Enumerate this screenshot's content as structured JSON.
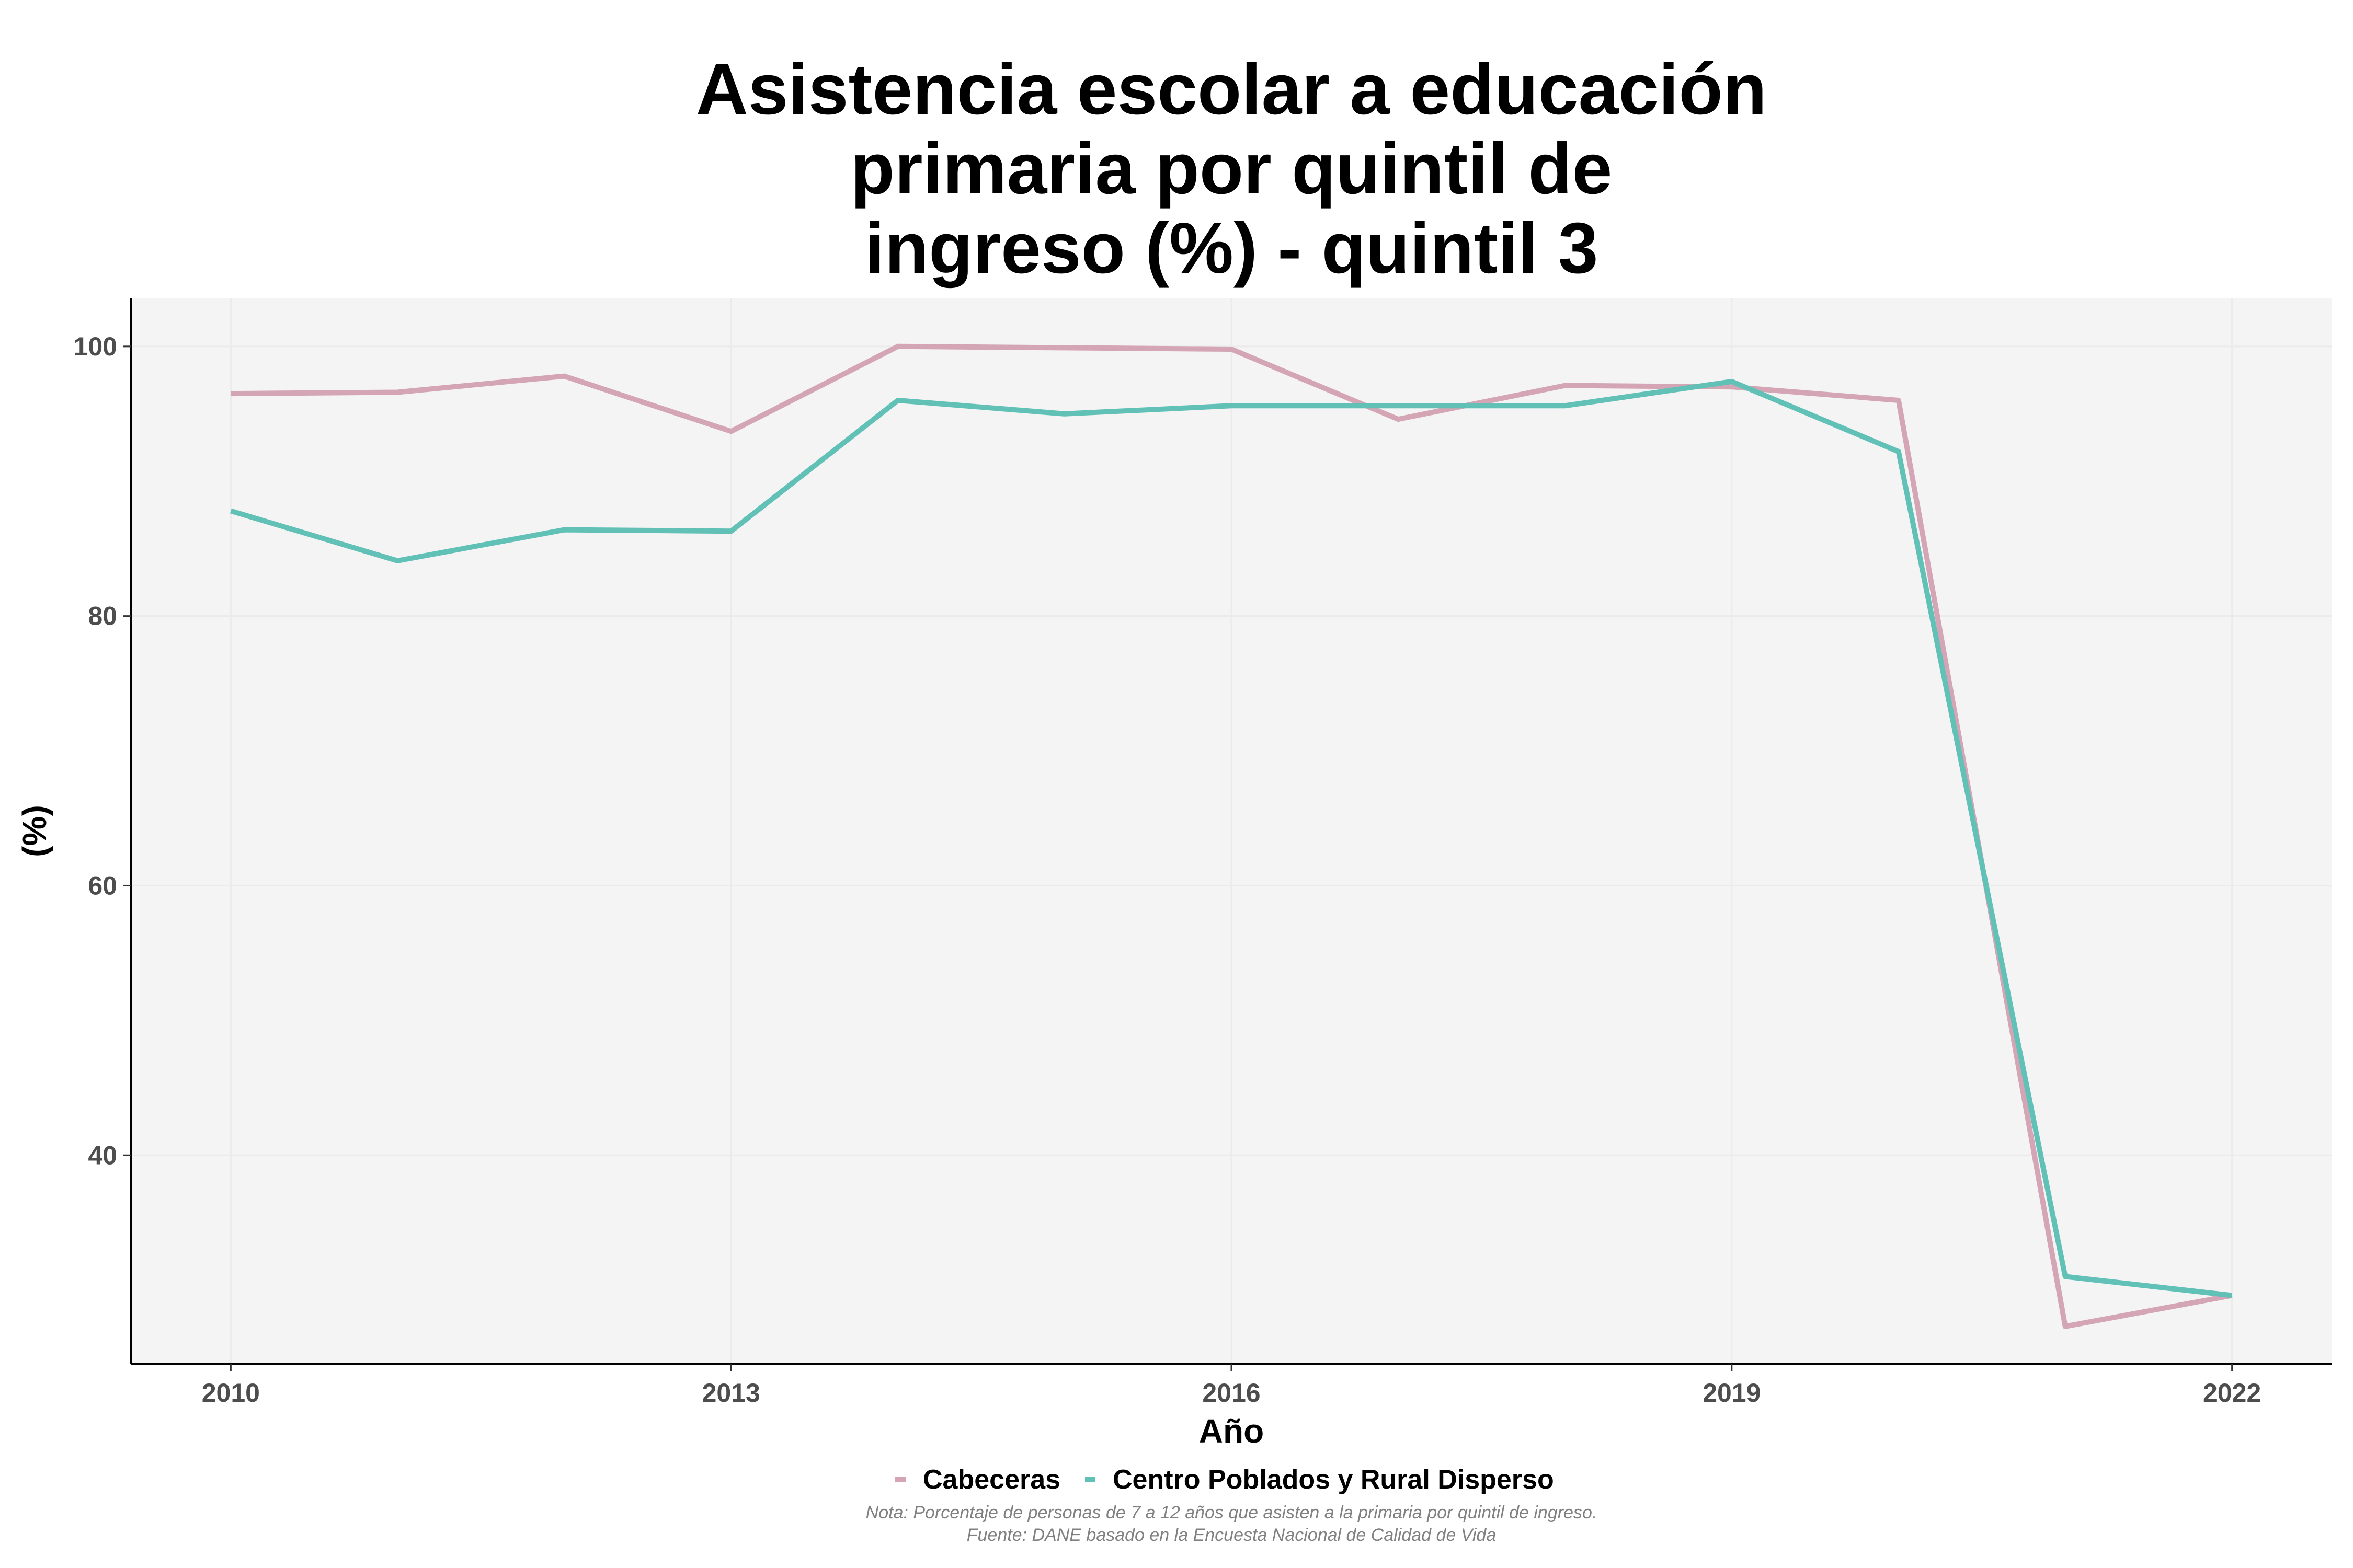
{
  "chart_data": {
    "type": "line",
    "title_lines": [
      "Asistencia escolar a educación",
      "primaria por quintil de",
      "ingreso (%) - quintil 3"
    ],
    "xlabel": "Año",
    "ylabel": "(%)",
    "x": [
      2010,
      2011,
      2012,
      2013,
      2014,
      2015,
      2016,
      2017,
      2018,
      2019,
      2020,
      2021,
      2022
    ],
    "x_ticks": [
      2010,
      2013,
      2016,
      2019,
      2022
    ],
    "y_ticks": [
      40,
      60,
      80,
      100
    ],
    "xlim": [
      2009.4,
      2022.6
    ],
    "ylim": [
      24.5,
      103.6
    ],
    "grid": true,
    "legend_position": "bottom",
    "series": [
      {
        "name": "Cabeceras",
        "color": "#d4a5b4",
        "values": [
          96.5,
          96.6,
          97.8,
          93.7,
          100.0,
          99.9,
          99.8,
          94.6,
          97.1,
          97.0,
          96.0,
          27.3,
          29.6
        ]
      },
      {
        "name": "Centro Poblados y Rural Disperso",
        "color": "#62c1b7",
        "values": [
          87.8,
          84.1,
          86.4,
          86.3,
          96.0,
          95.0,
          95.6,
          95.6,
          95.6,
          97.4,
          92.2,
          31.0,
          29.6
        ]
      }
    ],
    "caption_lines": [
      "Nota: Porcentaje de personas de 7 a 12 años que asisten a la primaria por quintil de ingreso.",
      "Fuente: DANE basado en la Encuesta Nacional de Calidad de Vida"
    ],
    "panel_background": "#f4f4f4",
    "grid_color": "#ebebeb"
  }
}
